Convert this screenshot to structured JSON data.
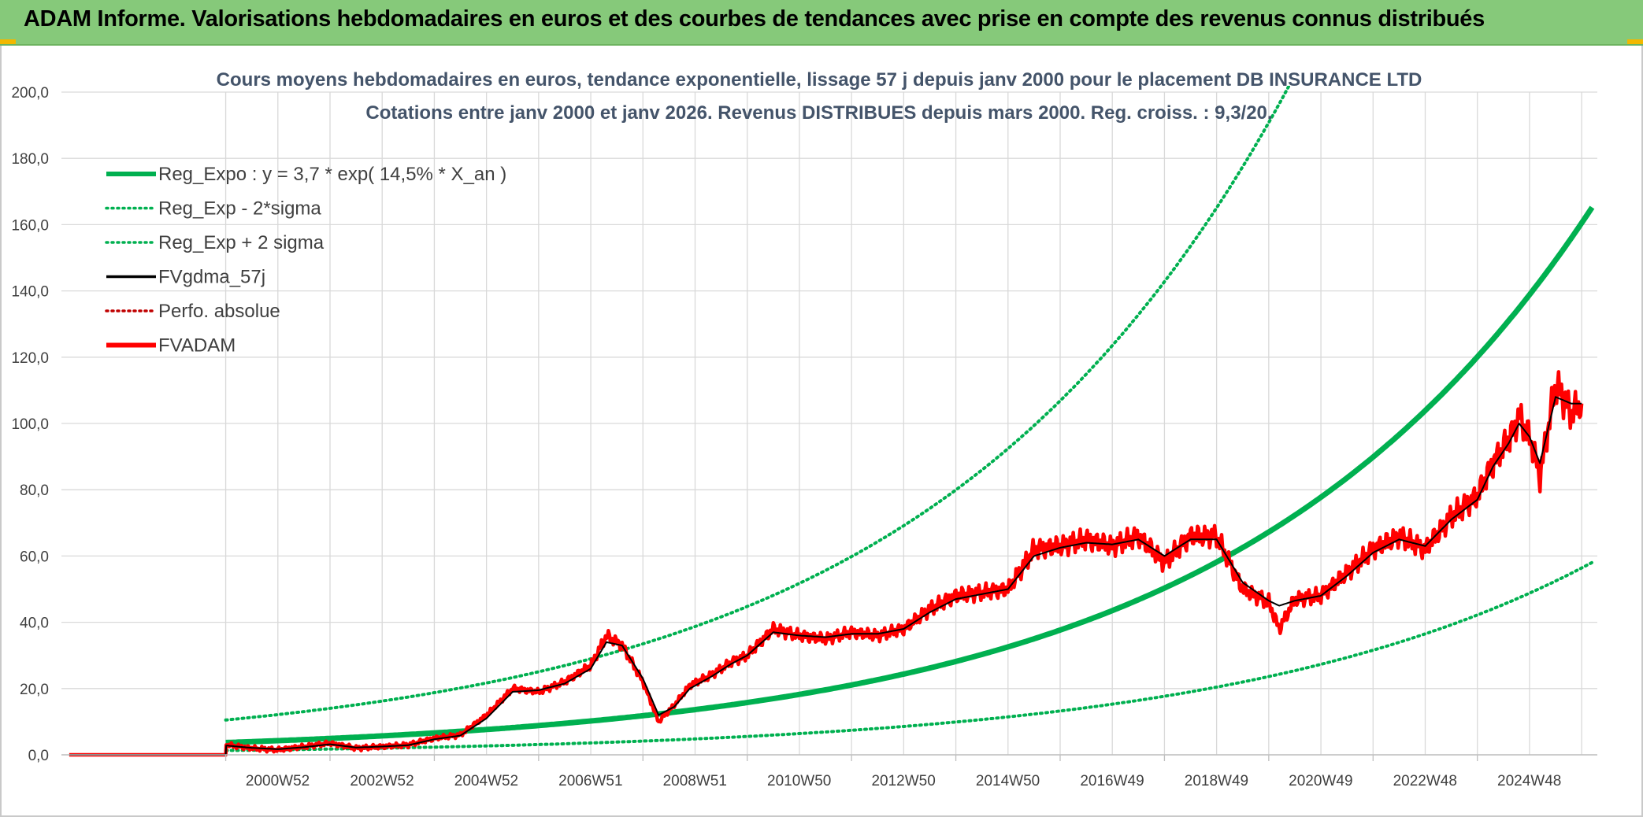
{
  "header": {
    "title": "ADAM Informe. Valorisations hebdomadaires en euros et des courbes de tendances avec prise en compte des revenus connus distribués"
  },
  "colors": {
    "banner": "#86c97a",
    "trend_green": "#00b050",
    "price_red": "#ff0000",
    "smooth_black": "#000000",
    "grid": "#d9d9d9",
    "title_text": "#44546a"
  },
  "chart_data": {
    "type": "line",
    "title": "Cours moyens hebdomadaires en euros, tendance exponentielle, lissage 57 j depuis janv 2000 pour le placement DB INSURANCE LTD",
    "subtitle": "Cotations entre janv 2000 et janv 2026. Revenus DISTRIBUES depuis mars 2000. Reg. croiss. : 9,3/20.",
    "xlabel": "",
    "ylabel": "",
    "ylim": [
      0,
      200
    ],
    "y_ticks": [
      "0,0",
      "20,0",
      "40,0",
      "60,0",
      "80,0",
      "100,0",
      "120,0",
      "140,0",
      "160,0",
      "180,0",
      "200,0"
    ],
    "x_ticks": [
      "2000W52",
      "2002W52",
      "2004W52",
      "2006W51",
      "2008W51",
      "2010W50",
      "2012W50",
      "2014W50",
      "2016W49",
      "2018W49",
      "2020W49",
      "2022W48",
      "2024W48"
    ],
    "grid": true,
    "legend_position": "top-left",
    "legend": [
      {
        "label": "Reg_Expo : y = 3,7 * exp( 14,5% *  X_an )",
        "color": "#00b050",
        "style": "solid-thick"
      },
      {
        "label": "Reg_Exp - 2*sigma",
        "color": "#00b050",
        "style": "dotted"
      },
      {
        "label": "Reg_Exp + 2 sigma",
        "color": "#00b050",
        "style": "dotted"
      },
      {
        "label": "FVgdma_57j",
        "color": "#000000",
        "style": "solid"
      },
      {
        "label": "Perfo. absolue",
        "color": "#c00000",
        "style": "dotted"
      },
      {
        "label": "FVADAM",
        "color": "#ff0000",
        "style": "solid-thick"
      }
    ],
    "series": [
      {
        "name": "FVADAM",
        "x": [
          1997.0,
          2000.0,
          2000.01,
          2000.5,
          2001.0,
          2001.5,
          2002.0,
          2002.5,
          2003.0,
          2003.5,
          2004.0,
          2004.5,
          2005.0,
          2005.5,
          2006.0,
          2006.5,
          2007.0,
          2007.3,
          2007.6,
          2008.0,
          2008.3,
          2008.6,
          2008.9,
          2009.3,
          2009.7,
          2010.0,
          2010.5,
          2011.0,
          2011.5,
          2012.0,
          2012.5,
          2013.0,
          2013.5,
          2014.0,
          2014.5,
          2015.0,
          2015.5,
          2016.0,
          2016.5,
          2017.0,
          2017.5,
          2018.0,
          2018.5,
          2019.0,
          2019.5,
          2020.0,
          2020.2,
          2020.5,
          2021.0,
          2021.5,
          2022.0,
          2022.5,
          2023.0,
          2023.5,
          2024.0,
          2024.3,
          2024.6,
          2024.8,
          2025.0,
          2025.2,
          2025.5,
          2025.8,
          2026.0
        ],
        "values": [
          0.0,
          0.0,
          3.0,
          2.0,
          1.5,
          2.5,
          3.5,
          2.0,
          2.5,
          3.0,
          5.0,
          6.0,
          12.0,
          20.0,
          19.0,
          22.0,
          27.0,
          36.0,
          33.0,
          22.0,
          10.0,
          15.0,
          21.0,
          24.0,
          28.0,
          30.0,
          38.0,
          36.0,
          35.0,
          37.0,
          36.0,
          38.0,
          44.0,
          48.0,
          49.0,
          50.0,
          62.0,
          63.0,
          65.0,
          63.0,
          66.0,
          58.0,
          66.0,
          66.0,
          50.0,
          46.0,
          38.0,
          47.0,
          48.0,
          55.0,
          62.0,
          66.0,
          62.0,
          72.0,
          78.0,
          88.0,
          95.0,
          102.0,
          96.0,
          84.0,
          112.0,
          103.0,
          106.0
        ]
      },
      {
        "name": "FVgdma_57j",
        "x": [
          1997.0,
          2000.0,
          2000.01,
          2000.5,
          2001.0,
          2001.5,
          2002.0,
          2002.5,
          2003.0,
          2003.5,
          2004.0,
          2004.5,
          2005.0,
          2005.5,
          2006.0,
          2006.5,
          2007.0,
          2007.3,
          2007.6,
          2008.0,
          2008.3,
          2008.6,
          2008.9,
          2009.3,
          2009.7,
          2010.0,
          2010.5,
          2011.0,
          2011.5,
          2012.0,
          2012.5,
          2013.0,
          2013.5,
          2014.0,
          2014.5,
          2015.0,
          2015.5,
          2016.0,
          2016.5,
          2017.0,
          2017.5,
          2018.0,
          2018.5,
          2019.0,
          2019.5,
          2020.0,
          2020.2,
          2020.5,
          2021.0,
          2021.5,
          2022.0,
          2022.5,
          2023.0,
          2023.5,
          2024.0,
          2024.3,
          2024.6,
          2024.8,
          2025.0,
          2025.2,
          2025.5,
          2025.8,
          2026.0
        ],
        "values": [
          0.0,
          0.0,
          2.8,
          2.1,
          1.7,
          2.3,
          3.2,
          2.2,
          2.5,
          2.9,
          4.7,
          5.8,
          11.0,
          19.0,
          19.5,
          21.5,
          26.0,
          34.0,
          33.0,
          23.0,
          12.0,
          14.5,
          20.0,
          23.5,
          27.5,
          30.0,
          37.0,
          36.0,
          35.5,
          36.5,
          36.5,
          38.0,
          43.0,
          47.0,
          48.5,
          50.0,
          60.0,
          62.5,
          64.0,
          63.5,
          65.0,
          60.0,
          65.0,
          65.0,
          52.0,
          46.5,
          45.0,
          46.5,
          48.0,
          54.0,
          61.0,
          65.0,
          63.0,
          71.0,
          77.0,
          87.0,
          94.0,
          100.0,
          96.0,
          88.0,
          108.0,
          106.0,
          106.0
        ]
      },
      {
        "name": "Reg_Expo : y = 3,7 * exp( 14,5% *  X_an )",
        "formula": "3.7 * exp(0.145 * (year - 2000))",
        "x_start": 2000.0,
        "x_end": 2026.2
      },
      {
        "name": "Reg_Exp - 2*sigma",
        "formula": "1.3 * exp(0.145 * (year - 2000))",
        "x_start": 2000.0,
        "x_end": 2026.2
      },
      {
        "name": "Reg_Exp + 2 sigma",
        "formula": "10.5 * exp(0.145 * (year - 2000))",
        "x_start": 2000.0,
        "x_end": 2026.2
      }
    ]
  }
}
